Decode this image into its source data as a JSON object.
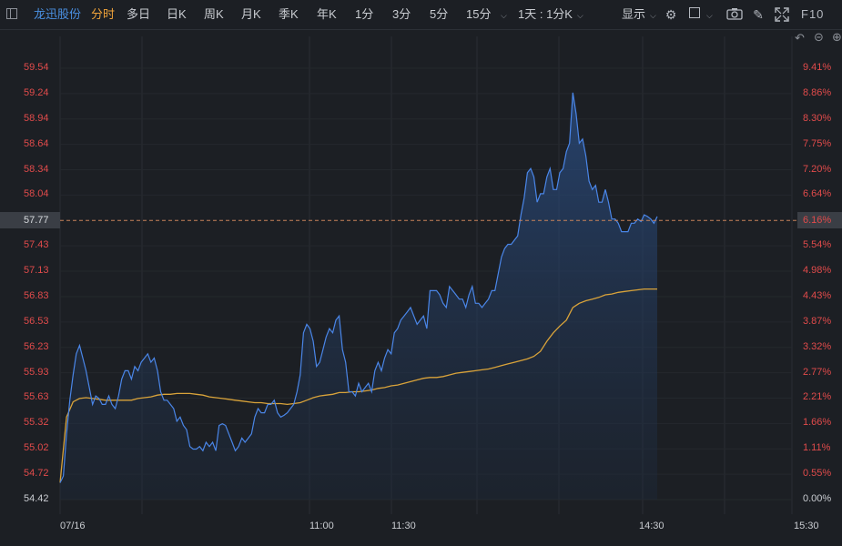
{
  "toolbar": {
    "stock_name": "龙迅股份",
    "tabs": [
      "分时",
      "多日",
      "日K",
      "周K",
      "月K",
      "季K",
      "年K",
      "1分",
      "3分",
      "5分",
      "15分"
    ],
    "active_tab": "分时",
    "period_selector": "1天 : 1分K",
    "display_label": "显示",
    "f10_label": "F10"
  },
  "icons": [
    "sidebar-toggle-icon",
    "settings-gear-icon",
    "layout-square-icon",
    "camera-icon",
    "pencil-icon",
    "fullscreen-icon",
    "undo-icon",
    "zoom-out-icon",
    "zoom-in-icon"
  ],
  "colors": {
    "price_line": "#4a86e8",
    "avg_line": "#d9a33a",
    "up": "#e14b4b",
    "background": "#1c1f24"
  },
  "y_left_labels": [
    "59.54",
    "59.24",
    "58.94",
    "58.64",
    "58.34",
    "58.04",
    "57.77",
    "57.43",
    "57.13",
    "56.83",
    "56.53",
    "56.23",
    "55.93",
    "55.63",
    "55.32",
    "55.02",
    "54.72",
    "54.42"
  ],
  "y_right_labels": [
    "9.41%",
    "8.86%",
    "8.30%",
    "7.75%",
    "7.20%",
    "6.64%",
    "6.16%",
    "5.54%",
    "4.98%",
    "4.43%",
    "3.87%",
    "3.32%",
    "2.77%",
    "2.21%",
    "1.66%",
    "1.11%",
    "0.55%",
    "0.00%"
  ],
  "current": {
    "price": "57.77",
    "pct": "6.16%"
  },
  "x_labels": [
    "07/16",
    "11:00",
    "11:30",
    "14:30",
    "15:30"
  ],
  "chart_data": {
    "type": "line",
    "ylim": [
      54.42,
      59.54
    ],
    "series": [
      {
        "values": [
          54.62,
          54.7,
          55.2,
          55.6,
          55.9,
          56.15,
          56.25,
          56.1,
          55.95,
          55.75,
          55.55,
          55.65,
          55.62,
          55.55,
          55.55,
          55.65,
          55.55,
          55.5,
          55.65,
          55.85,
          55.95,
          55.95,
          55.85,
          56.0,
          55.95,
          56.05,
          56.1,
          56.15,
          56.05,
          56.1,
          55.95,
          55.7,
          55.6,
          55.6,
          55.55,
          55.5,
          55.35,
          55.4,
          55.3,
          55.25,
          55.05,
          55.02,
          55.02,
          55.05,
          55.0,
          55.1,
          55.05,
          55.1,
          55.0,
          55.3,
          55.32,
          55.3,
          55.2,
          55.1,
          55.0,
          55.05,
          55.15,
          55.1,
          55.15,
          55.2,
          55.4,
          55.5,
          55.45,
          55.45,
          55.55,
          55.55,
          55.6,
          55.45,
          55.4,
          55.42,
          55.45,
          55.5,
          55.55,
          55.7,
          55.9,
          56.4,
          56.5,
          56.45,
          56.3,
          56.0,
          56.05,
          56.2,
          56.35,
          56.45,
          56.4,
          56.55,
          56.6,
          56.2,
          56.05,
          55.7,
          55.7,
          55.65,
          55.8,
          55.7,
          55.75,
          55.8,
          55.7,
          55.95,
          56.05,
          55.95,
          56.1,
          56.2,
          56.15,
          56.4,
          56.45,
          56.55,
          56.6,
          56.65,
          56.7,
          56.6,
          56.5,
          56.55,
          56.6,
          56.45,
          56.9,
          56.9,
          56.9,
          56.85,
          56.75,
          56.7,
          56.95,
          56.9,
          56.85,
          56.8,
          56.8,
          56.7,
          56.85,
          56.95,
          56.75,
          56.75,
          56.7,
          56.75,
          56.8,
          56.9,
          56.9,
          57.1,
          57.3,
          57.4,
          57.45,
          57.45,
          57.5,
          57.55,
          57.8,
          58.0,
          58.3,
          58.35,
          58.25,
          57.95,
          58.05,
          58.05,
          58.25,
          58.35,
          58.1,
          58.1,
          58.3,
          58.35,
          58.55,
          58.65,
          59.25,
          59.0,
          58.65,
          58.7,
          58.5,
          58.2,
          58.1,
          58.15,
          57.95,
          57.95,
          58.1,
          57.95,
          57.75,
          57.75,
          57.7,
          57.6,
          57.6,
          57.6,
          57.7,
          57.7,
          57.75,
          57.72,
          57.8,
          57.78,
          57.75,
          57.7,
          57.78
        ]
      },
      {
        "values": [
          54.62,
          55.4,
          55.58,
          55.62,
          55.63,
          55.62,
          55.61,
          55.6,
          55.6,
          55.6,
          55.6,
          55.6,
          55.62,
          55.63,
          55.64,
          55.66,
          55.67,
          55.67,
          55.68,
          55.68,
          55.68,
          55.67,
          55.66,
          55.64,
          55.63,
          55.62,
          55.61,
          55.6,
          55.59,
          55.58,
          55.57,
          55.57,
          55.56,
          55.56,
          55.56,
          55.55,
          55.56,
          55.57,
          55.6,
          55.63,
          55.65,
          55.66,
          55.67,
          55.69,
          55.69,
          55.7,
          55.7,
          55.71,
          55.72,
          55.74,
          55.75,
          55.77,
          55.78,
          55.8,
          55.82,
          55.84,
          55.86,
          55.87,
          55.87,
          55.88,
          55.9,
          55.92,
          55.93,
          55.94,
          55.95,
          55.96,
          55.97,
          55.99,
          56.01,
          56.03,
          56.05,
          56.07,
          56.09,
          56.12,
          56.18,
          56.3,
          56.4,
          56.48,
          56.55,
          56.7,
          56.75,
          56.78,
          56.8,
          56.82,
          56.85,
          56.86,
          56.88,
          56.89,
          56.9,
          56.91,
          56.92,
          56.92,
          56.92
        ]
      }
    ]
  }
}
